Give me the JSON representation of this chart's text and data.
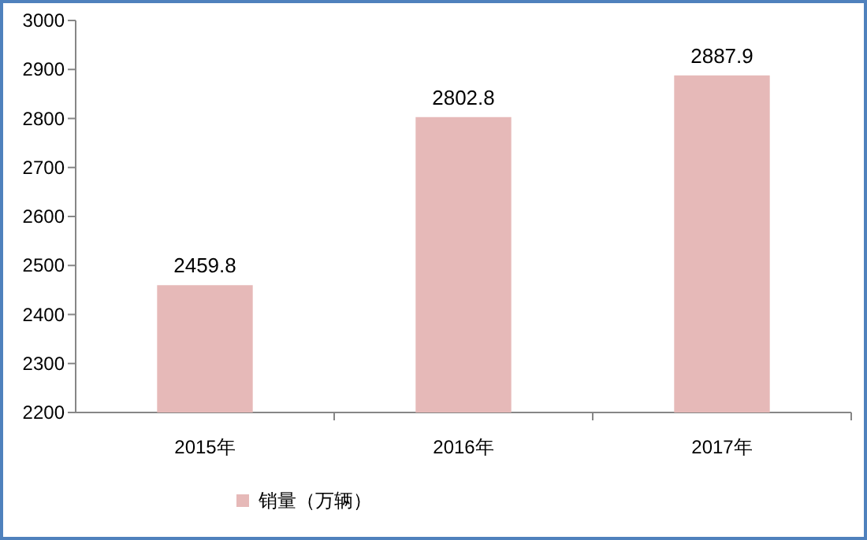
{
  "chart_data": {
    "type": "bar",
    "categories": [
      "2015年",
      "2016年",
      "2017年"
    ],
    "series": [
      {
        "name": "销量（万辆）",
        "color": "#e6b9b8",
        "values": [
          2459.8,
          2802.8,
          2887.9
        ]
      }
    ],
    "ylim": [
      2200,
      3000
    ],
    "yticks": [
      2200,
      2300,
      2400,
      2500,
      2600,
      2700,
      2800,
      2900,
      3000
    ],
    "data_labels": true,
    "legend": "bottom"
  }
}
